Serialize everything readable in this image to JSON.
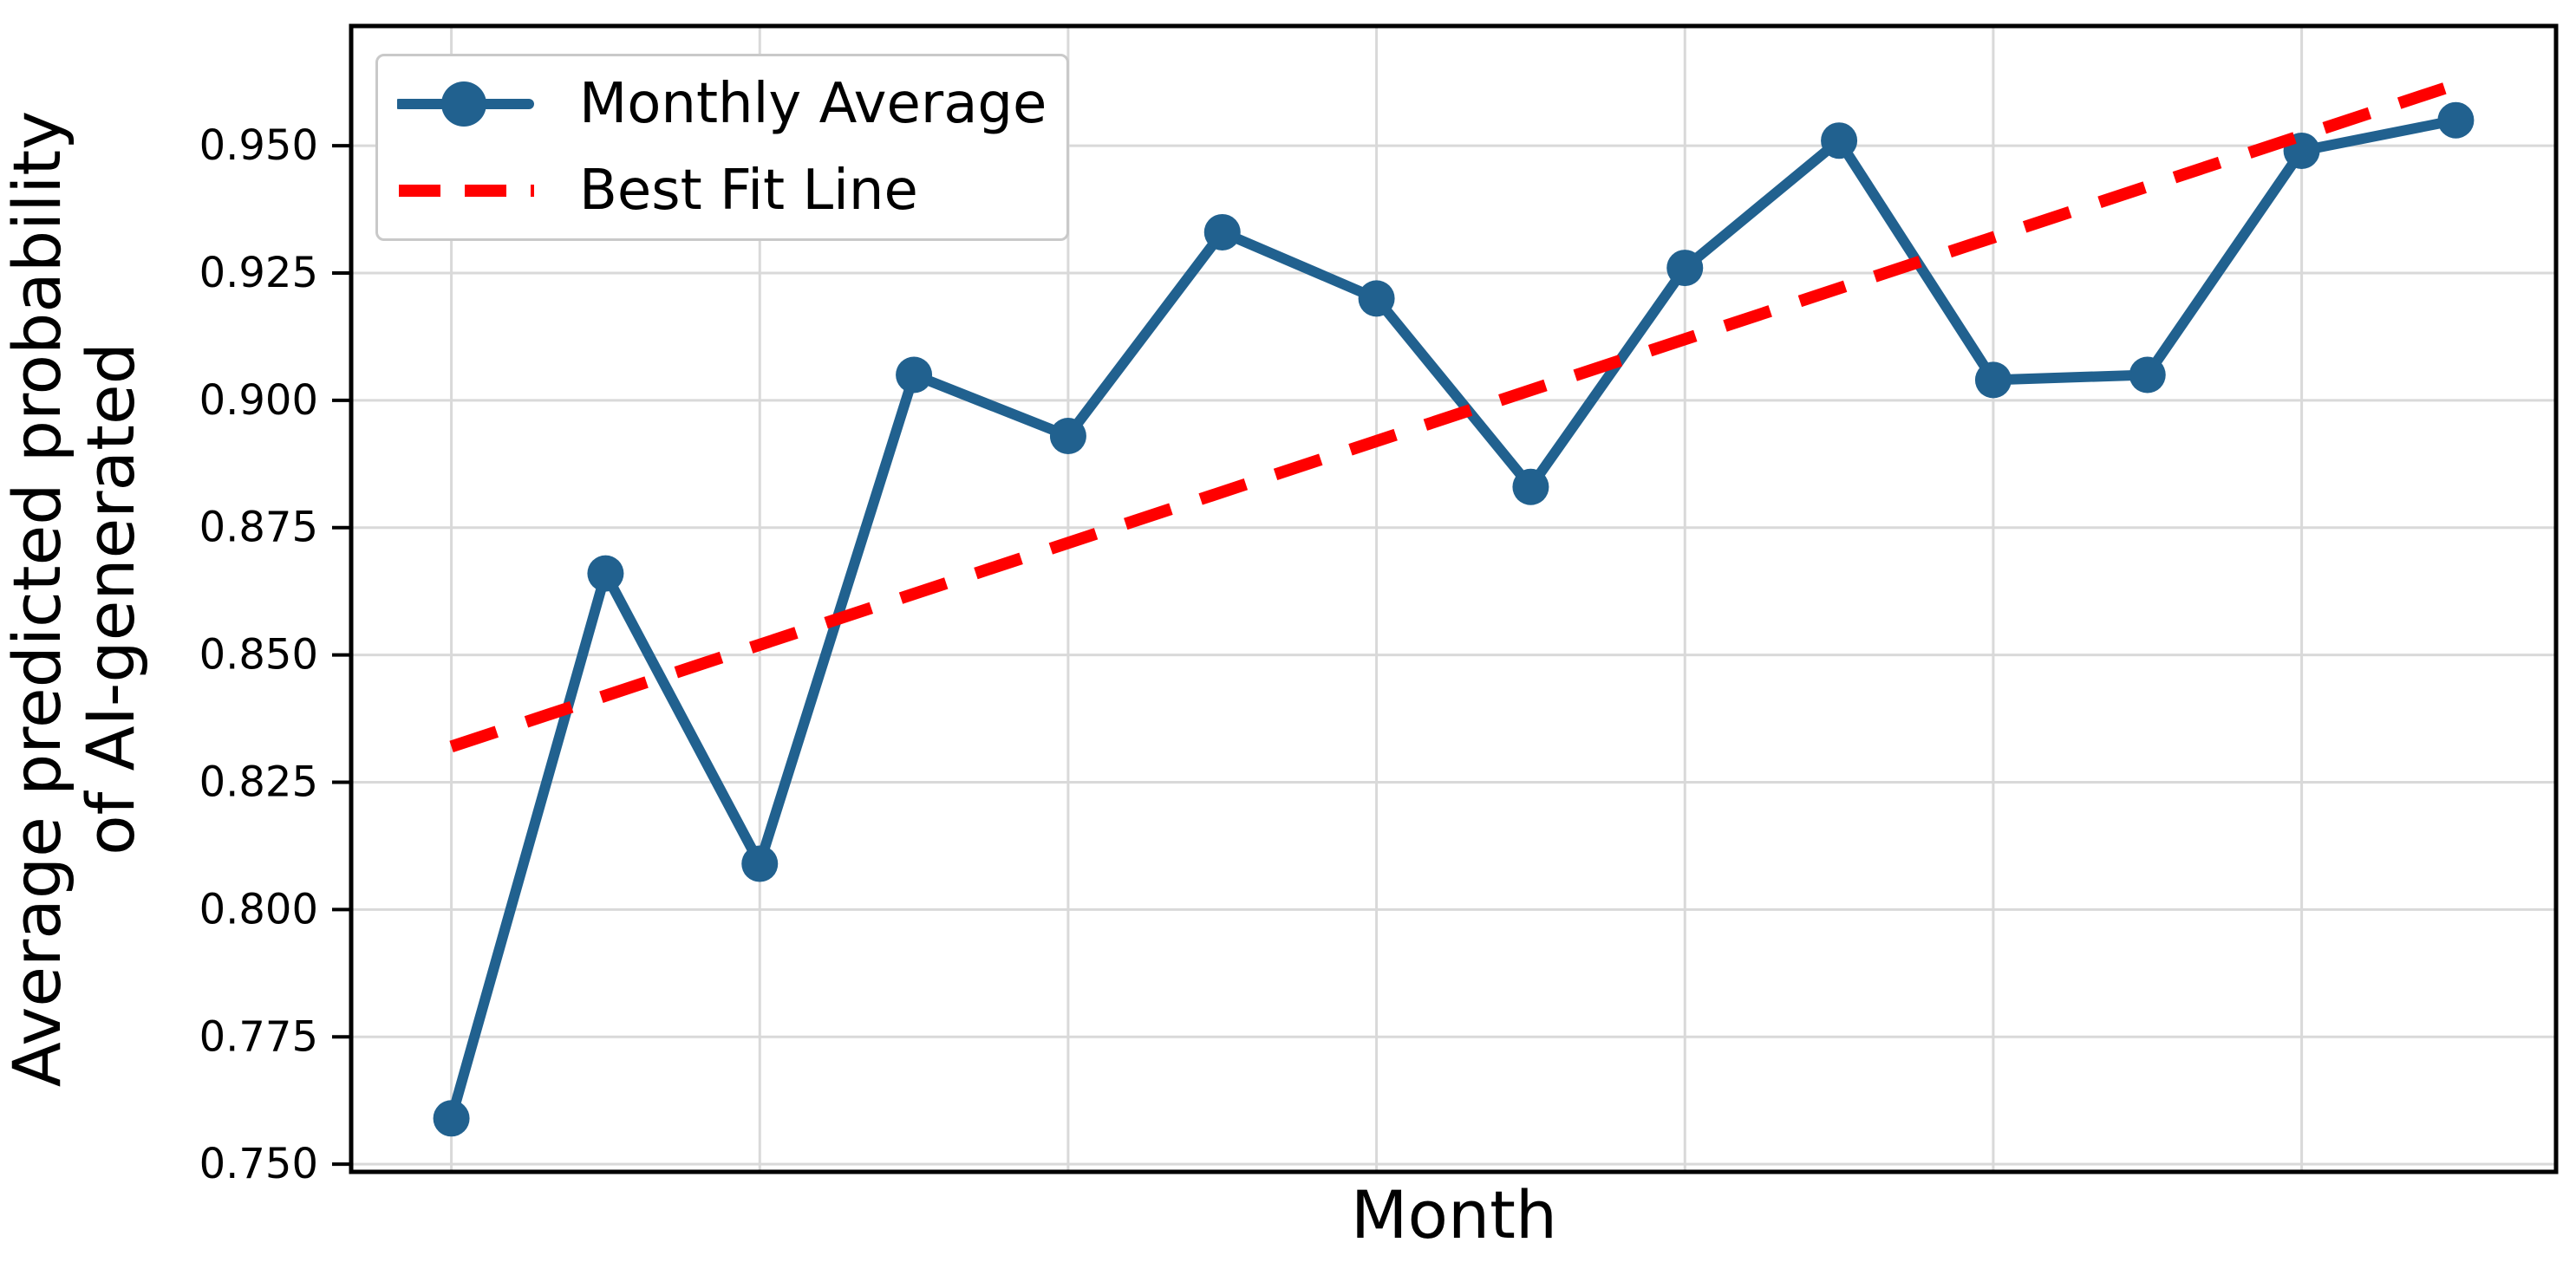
{
  "axes": {
    "xlabel": "Month",
    "ylabel_lines": [
      "Average predicted probability",
      "of AI-generated"
    ],
    "y_tick_labels": [
      "0.950",
      "0.925",
      "0.900",
      "0.875",
      "0.850",
      "0.825",
      "0.800",
      "0.775",
      "0.750"
    ]
  },
  "legend": {
    "items": [
      {
        "label": "Monthly Average",
        "sample": "solid-line-with-circle-marker"
      },
      {
        "label": "Best Fit Line",
        "sample": "red-dashed-line"
      }
    ]
  },
  "chart_data": {
    "type": "line",
    "title": "",
    "xlabel": "Month",
    "ylabel": "Average predicted probability of AI-generated",
    "x": [
      0,
      1,
      2,
      3,
      4,
      5,
      6,
      7,
      8,
      9,
      10,
      11,
      12,
      13
    ],
    "x_tick_labels_shown": false,
    "series": [
      {
        "name": "Monthly Average",
        "values": [
          0.759,
          0.866,
          0.809,
          0.905,
          0.893,
          0.933,
          0.92,
          0.883,
          0.926,
          0.951,
          0.904,
          0.905,
          0.949,
          0.955
        ]
      }
    ],
    "best_fit_line": {
      "name": "Best Fit Line",
      "start_value": 0.832,
      "end_value": 0.962,
      "slope_per_month": 0.01
    },
    "ylim": [
      0.7485,
      0.9735
    ],
    "xlim": [
      -0.65,
      13.65
    ],
    "y_tick_values": [
      0.95,
      0.925,
      0.9,
      0.875,
      0.85,
      0.825,
      0.8,
      0.775,
      0.75
    ],
    "x_gridline_positions": [
      0,
      2,
      4,
      6,
      8,
      10,
      12
    ],
    "grid": true,
    "legend_position": "upper left",
    "colors": {
      "series": "#21618f",
      "fit": "#ff0000",
      "grid": "#d9d9d9",
      "spine": "#000000",
      "legend_border": "#c9c9c9"
    }
  }
}
